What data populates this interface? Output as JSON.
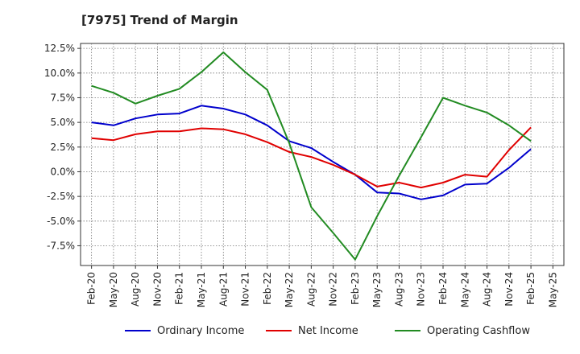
{
  "chart_data": {
    "type": "line",
    "title": "[7975]  Trend of Margin",
    "xlabel": "",
    "ylabel": "",
    "x": [
      "Feb-20",
      "May-20",
      "Aug-20",
      "Nov-20",
      "Feb-21",
      "May-21",
      "Aug-21",
      "Nov-21",
      "Feb-22",
      "May-22",
      "Aug-22",
      "Nov-22",
      "Feb-23",
      "May-23",
      "Aug-23",
      "Nov-23",
      "Feb-24",
      "May-24",
      "Aug-24",
      "Nov-24",
      "Feb-25",
      "May-25"
    ],
    "ylim": [
      -9.5,
      13.0
    ],
    "yticks": [
      12.5,
      10.0,
      7.5,
      5.0,
      2.5,
      0.0,
      -2.5,
      -5.0,
      -7.5
    ],
    "ytick_labels": [
      "12.5%",
      "10.0%",
      "7.5%",
      "5.0%",
      "2.5%",
      "0.0%",
      "-2.5%",
      "-5.0%",
      "-7.5%"
    ],
    "grid": true,
    "legend_position": "bottom",
    "series": [
      {
        "name": "Ordinary Income",
        "color": "#0000cc",
        "values": [
          5.0,
          4.7,
          5.4,
          5.8,
          5.9,
          6.7,
          6.4,
          5.8,
          4.7,
          3.1,
          2.4,
          1.0,
          -0.3,
          -2.1,
          -2.2,
          -2.8,
          -2.4,
          -1.3,
          -1.2,
          0.4,
          2.3,
          null
        ]
      },
      {
        "name": "Net Income",
        "color": "#e00000",
        "values": [
          3.4,
          3.2,
          3.8,
          4.1,
          4.1,
          4.4,
          4.3,
          3.8,
          3.0,
          2.0,
          1.5,
          0.7,
          -0.3,
          -1.5,
          -1.1,
          -1.6,
          -1.1,
          -0.3,
          -0.5,
          2.2,
          4.5,
          null
        ]
      },
      {
        "name": "Operating Cashflow",
        "color": "#228b22",
        "values": [
          8.7,
          8.0,
          6.9,
          7.7,
          8.4,
          10.1,
          12.1,
          10.1,
          8.3,
          2.9,
          -3.6,
          -6.2,
          -8.9,
          -4.5,
          -0.4,
          3.5,
          7.5,
          6.7,
          6.0,
          4.7,
          3.1,
          null
        ]
      }
    ]
  }
}
